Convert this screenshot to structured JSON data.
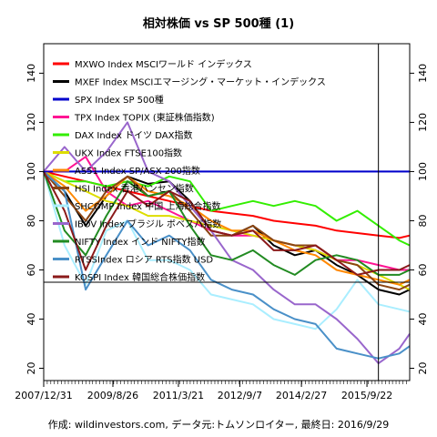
{
  "chart_data": {
    "type": "line",
    "title": "相対株価 vs SP 500種 (1)",
    "caption": "作成: wildinvestors.com, データ元:トムソンロイター, 最終日: 2016/9/29",
    "x_tick_labels": [
      "2007/12/31",
      "2009/8/26",
      "2011/3/21",
      "2012/9/7",
      "2014/2/27",
      "2015/9/22"
    ],
    "x_tick_dates": [
      "2007-12-31",
      "2009-08-26",
      "2011-03-21",
      "2012-09-07",
      "2014-02-27",
      "2015-09-22"
    ],
    "x_range": [
      "2007-12-31",
      "2016-09-29"
    ],
    "y_range": [
      15,
      152
    ],
    "y_ticks": [
      20,
      40,
      60,
      80,
      100,
      120,
      140
    ],
    "grid": false,
    "legend_position": "top-left",
    "reference_lines": {
      "horizontal_blue_at": 100,
      "horizontal_black_at": 55,
      "vertical_black_at": "2015-12-31"
    },
    "series": [
      {
        "name": "MXWO Index MSCIワールド インデックス",
        "color": "#ff0000",
        "x": [
          "2007-12-31",
          "2008-06-30",
          "2008-12-31",
          "2009-06-30",
          "2009-12-31",
          "2010-06-30",
          "2010-12-31",
          "2011-06-30",
          "2011-12-31",
          "2012-06-30",
          "2012-12-31",
          "2013-06-30",
          "2013-12-31",
          "2014-06-30",
          "2014-12-31",
          "2015-06-30",
          "2015-12-31",
          "2016-06-30",
          "2016-09-29"
        ],
        "values": [
          100,
          98,
          96,
          94,
          92,
          90,
          88,
          86,
          84,
          83,
          82,
          80,
          79,
          78,
          76,
          75,
          74,
          73,
          74
        ]
      },
      {
        "name": "MXEF Index MSCIエマージング・マーケット・インデックス",
        "color": "#000000",
        "x": [
          "2007-12-31",
          "2008-06-30",
          "2008-12-31",
          "2009-06-30",
          "2009-12-31",
          "2010-06-30",
          "2010-12-31",
          "2011-06-30",
          "2011-12-31",
          "2012-06-30",
          "2012-12-31",
          "2013-06-30",
          "2013-12-31",
          "2014-06-30",
          "2014-12-31",
          "2015-06-30",
          "2015-12-31",
          "2016-06-30",
          "2016-09-29"
        ],
        "values": [
          100,
          92,
          78,
          90,
          98,
          95,
          96,
          88,
          76,
          74,
          78,
          70,
          66,
          68,
          62,
          58,
          52,
          50,
          52
        ]
      },
      {
        "name": "SPX Index SP 500種",
        "color": "#0000cc",
        "x": [
          "2007-12-31",
          "2016-09-29"
        ],
        "values": [
          100,
          100
        ]
      },
      {
        "name": "TPX Index TOPIX (東証株価指数)",
        "color": "#ff1493",
        "x": [
          "2007-12-31",
          "2008-06-30",
          "2008-12-31",
          "2009-06-30",
          "2009-12-31",
          "2010-06-30",
          "2010-12-31",
          "2011-06-30",
          "2011-12-31",
          "2012-06-30",
          "2012-12-31",
          "2013-06-30",
          "2013-12-31",
          "2014-06-30",
          "2014-12-31",
          "2015-06-30",
          "2015-12-31",
          "2016-06-30",
          "2016-09-29"
        ],
        "values": [
          100,
          100,
          106,
          92,
          86,
          88,
          84,
          80,
          76,
          74,
          74,
          72,
          70,
          68,
          64,
          64,
          62,
          60,
          60
        ]
      },
      {
        "name": "DAX Index ドイツ DAX指数",
        "color": "#33ee00",
        "x": [
          "2007-12-31",
          "2008-06-30",
          "2008-12-31",
          "2009-06-30",
          "2009-12-31",
          "2010-06-30",
          "2010-12-31",
          "2011-06-30",
          "2011-12-31",
          "2012-06-30",
          "2012-12-31",
          "2013-06-30",
          "2013-12-31",
          "2014-06-30",
          "2014-12-31",
          "2015-06-30",
          "2015-12-31",
          "2016-06-30",
          "2016-09-29"
        ],
        "values": [
          100,
          96,
          96,
          94,
          96,
          94,
          98,
          96,
          84,
          86,
          88,
          86,
          88,
          86,
          80,
          84,
          78,
          72,
          70
        ]
      },
      {
        "name": "UKX Index FTSE100指数",
        "color": "#dddd00",
        "x": [
          "2007-12-31",
          "2008-06-30",
          "2008-12-31",
          "2009-06-30",
          "2009-12-31",
          "2010-06-30",
          "2010-12-31",
          "2011-06-30",
          "2011-12-31",
          "2012-06-30",
          "2012-12-31",
          "2013-06-30",
          "2013-12-31",
          "2014-06-30",
          "2014-12-31",
          "2015-06-30",
          "2015-12-31",
          "2016-06-30",
          "2016-09-29"
        ],
        "values": [
          100,
          96,
          92,
          88,
          86,
          82,
          82,
          80,
          78,
          76,
          74,
          72,
          70,
          68,
          64,
          62,
          58,
          54,
          52
        ]
      },
      {
        "name": "AS51 Index SP/ASX 200指数",
        "color": "#ff8800",
        "x": [
          "2007-12-31",
          "2008-06-30",
          "2008-12-31",
          "2009-06-30",
          "2009-12-31",
          "2010-06-30",
          "2010-12-31",
          "2011-06-30",
          "2011-12-31",
          "2012-06-30",
          "2012-12-31",
          "2013-06-30",
          "2013-12-31",
          "2014-06-30",
          "2014-12-31",
          "2015-06-30",
          "2015-12-31",
          "2016-06-30",
          "2016-09-29"
        ],
        "values": [
          100,
          94,
          84,
          90,
          98,
          92,
          90,
          86,
          80,
          76,
          76,
          72,
          68,
          66,
          60,
          58,
          56,
          54,
          56
        ]
      },
      {
        "name": "HSI Index 香港ハンセン指数",
        "color": "#8b4513",
        "x": [
          "2007-12-31",
          "2008-06-30",
          "2008-12-31",
          "2009-06-30",
          "2009-12-31",
          "2010-06-30",
          "2010-12-31",
          "2011-06-30",
          "2011-12-31",
          "2012-06-30",
          "2012-12-31",
          "2013-06-30",
          "2013-12-31",
          "2014-06-30",
          "2014-12-31",
          "2015-06-30",
          "2015-12-31",
          "2016-06-30",
          "2016-09-29"
        ],
        "values": [
          100,
          90,
          80,
          92,
          98,
          90,
          92,
          84,
          74,
          74,
          78,
          72,
          70,
          70,
          64,
          62,
          54,
          52,
          54
        ]
      },
      {
        "name": "SHCOMP Index 中国 上海総合指数",
        "color": "#aaeeff",
        "x": [
          "2007-12-31",
          "2008-06-30",
          "2008-12-31",
          "2009-06-30",
          "2009-12-31",
          "2010-06-30",
          "2010-12-31",
          "2011-06-30",
          "2011-12-31",
          "2012-06-30",
          "2012-12-31",
          "2013-06-30",
          "2013-12-31",
          "2014-06-30",
          "2014-12-31",
          "2015-06-30",
          "2015-12-31",
          "2016-06-30",
          "2016-09-29"
        ],
        "values": [
          100,
          70,
          54,
          76,
          80,
          64,
          64,
          60,
          50,
          48,
          46,
          40,
          38,
          36,
          44,
          56,
          46,
          44,
          43
        ]
      },
      {
        "name": "IBOV Index ブラジル ボベスパ指数",
        "color": "#9966cc",
        "x": [
          "2007-12-31",
          "2008-06-30",
          "2008-12-31",
          "2009-06-30",
          "2009-12-31",
          "2010-06-30",
          "2010-12-31",
          "2011-06-30",
          "2011-12-31",
          "2012-06-30",
          "2012-12-31",
          "2013-06-30",
          "2013-12-31",
          "2014-06-30",
          "2014-12-31",
          "2015-06-30",
          "2015-12-31",
          "2016-06-30",
          "2016-09-29"
        ],
        "values": [
          100,
          110,
          100,
          108,
          120,
          100,
          96,
          86,
          76,
          64,
          60,
          52,
          46,
          46,
          40,
          32,
          22,
          28,
          34
        ]
      },
      {
        "name": "NIFTY Index インド NIFTY指数",
        "color": "#228b22",
        "x": [
          "2007-12-31",
          "2008-06-30",
          "2008-12-31",
          "2009-06-30",
          "2009-12-31",
          "2010-06-30",
          "2010-12-31",
          "2011-06-30",
          "2011-12-31",
          "2012-06-30",
          "2012-12-31",
          "2013-06-30",
          "2013-12-31",
          "2014-06-30",
          "2014-12-31",
          "2015-06-30",
          "2015-12-31",
          "2016-06-30",
          "2016-09-29"
        ],
        "values": [
          100,
          76,
          66,
          82,
          96,
          90,
          92,
          78,
          66,
          64,
          68,
          62,
          58,
          64,
          66,
          64,
          58,
          58,
          60
        ]
      },
      {
        "name": "RTSSIndex ロシア RTS指数 USD",
        "color": "#4a90c8",
        "x": [
          "2007-12-31",
          "2008-06-30",
          "2008-12-31",
          "2009-06-30",
          "2009-12-31",
          "2010-06-30",
          "2010-12-31",
          "2011-06-30",
          "2011-12-31",
          "2012-06-30",
          "2012-12-31",
          "2013-06-30",
          "2013-12-31",
          "2014-06-30",
          "2014-12-31",
          "2015-06-30",
          "2015-12-31",
          "2016-06-30",
          "2016-09-29"
        ],
        "values": [
          100,
          92,
          52,
          66,
          80,
          70,
          74,
          68,
          56,
          52,
          50,
          44,
          40,
          38,
          28,
          26,
          24,
          26,
          29
        ]
      },
      {
        "name": "KOSPI Index 韓国総合株価指数",
        "color": "#8b1a1a",
        "x": [
          "2007-12-31",
          "2008-06-30",
          "2008-12-31",
          "2009-06-30",
          "2009-12-31",
          "2010-06-30",
          "2010-12-31",
          "2011-06-30",
          "2011-12-31",
          "2012-06-30",
          "2012-12-31",
          "2013-06-30",
          "2013-12-31",
          "2014-06-30",
          "2014-12-31",
          "2015-06-30",
          "2015-12-31",
          "2016-06-30",
          "2016-09-29"
        ],
        "values": [
          100,
          84,
          60,
          78,
          92,
          86,
          92,
          88,
          76,
          74,
          76,
          68,
          68,
          70,
          64,
          58,
          60,
          60,
          62
        ]
      }
    ]
  }
}
